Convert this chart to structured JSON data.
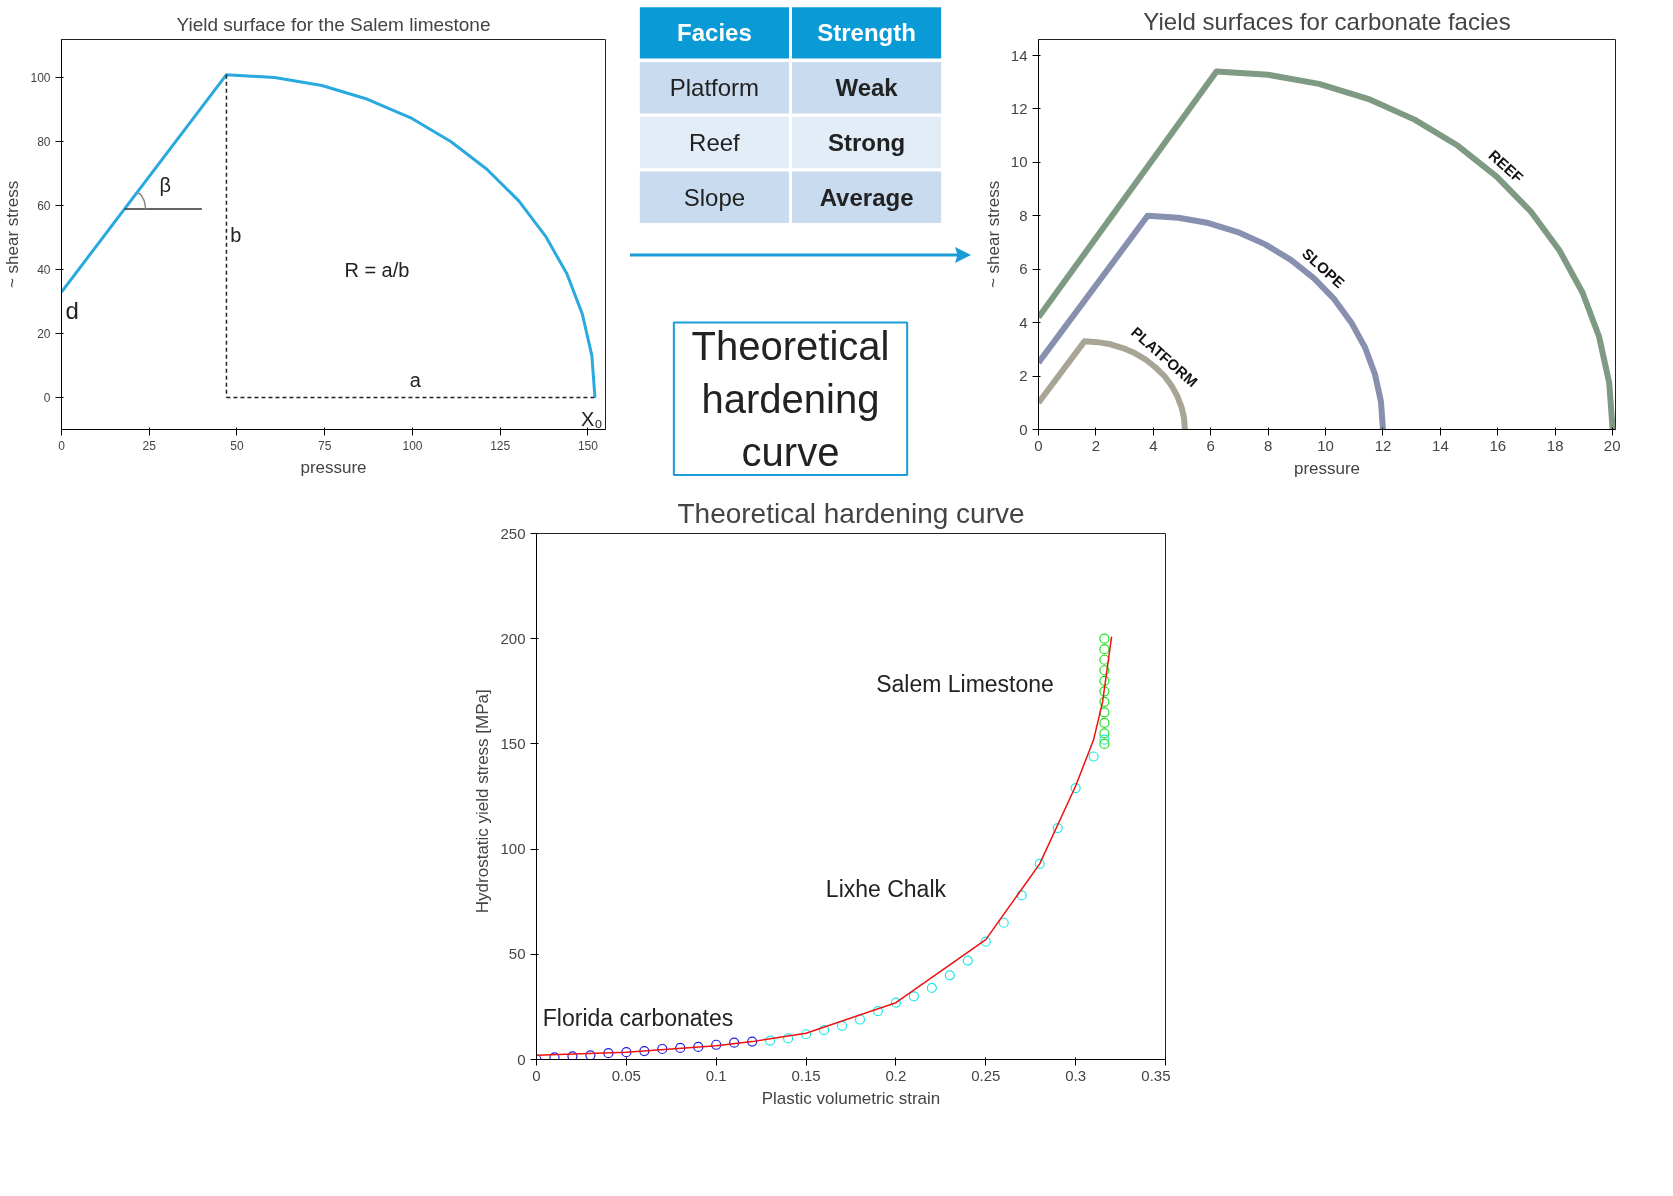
{
  "chart_data": [
    {
      "type": "line",
      "title": "Yield surface for the Salem limestone",
      "xlabel": "pressure",
      "ylabel": "~ shear stress",
      "xlim": [
        0,
        155
      ],
      "ylim": [
        -10,
        112
      ],
      "xticks": [
        0,
        25,
        50,
        75,
        100,
        125,
        150
      ],
      "yticks": [
        0,
        20,
        40,
        60,
        80,
        100
      ],
      "grid": false,
      "series": [
        {
          "color": "#29a9e0",
          "x": [
            0,
            47,
            60.7,
            74.2,
            87.2,
            99.5,
            110.9,
            121.2,
            130.3,
            137.9,
            144.0,
            148.4,
            151.1,
            152
          ],
          "values": [
            33,
            101,
            100.1,
            97.6,
            93.3,
            87.5,
            80.1,
            71.4,
            61.5,
            50.5,
            38.7,
            26.1,
            13.2,
            0
          ]
        },
        {
          "color": "#222222",
          "line_style": "dashed",
          "x": [
            47,
            47
          ],
          "values": [
            101,
            0
          ]
        },
        {
          "color": "#222222",
          "line_style": "dashed",
          "x": [
            47,
            152
          ],
          "values": [
            0,
            0
          ]
        },
        {
          "color": "#333333",
          "x": [
            18,
            40
          ],
          "values": [
            59,
            59
          ]
        },
        {
          "color": "#888888",
          "x": [
            24,
            23.6,
            22.6,
            21.5
          ],
          "values": [
            59,
            61.5,
            63.5,
            64.1
          ]
        }
      ],
      "annotations": [
        "β",
        "b",
        "R = a/b",
        "a",
        "X₀",
        "d"
      ]
    },
    {
      "type": "other",
      "annotations": [
        "Facies",
        "Strength",
        "Platform",
        "Weak",
        "Reef",
        "Strong",
        "Slope",
        "Average"
      ]
    },
    {
      "type": "other",
      "annotations": [
        "Theoretical hardening curve"
      ]
    },
    {
      "type": "line",
      "title": "Yield surfaces for carbonate facies",
      "xlabel": "pressure",
      "ylabel": "~ shear stress",
      "xlim": [
        0,
        20.1
      ],
      "ylim": [
        0,
        14.6
      ],
      "xticks": [
        0,
        2,
        4,
        6,
        8,
        10,
        12,
        14,
        16,
        18,
        20
      ],
      "yticks": [
        0,
        2,
        4,
        6,
        8,
        10,
        12,
        14
      ],
      "grid": false,
      "series": [
        {
          "name": "REEF",
          "color": "#7f9a82",
          "x": [
            0,
            6.2,
            8.0,
            9.77,
            11.48,
            13.1,
            14.6,
            15.96,
            17.15,
            18.15,
            18.95,
            19.53,
            19.88,
            20.0
          ],
          "values": [
            4.2,
            13.4,
            13.28,
            12.94,
            12.38,
            11.6,
            10.63,
            9.47,
            8.16,
            6.7,
            5.13,
            3.47,
            1.75,
            0
          ]
        },
        {
          "name": "SLOPE",
          "color": "#8890b0",
          "x": [
            0,
            3.8,
            4.87,
            5.92,
            6.94,
            7.9,
            8.79,
            9.6,
            10.31,
            10.9,
            11.38,
            11.72,
            11.93,
            12.0
          ],
          "values": [
            2.5,
            8,
            7.93,
            7.73,
            7.39,
            6.93,
            6.35,
            5.66,
            4.87,
            4,
            3.06,
            2.07,
            1.04,
            0
          ]
        },
        {
          "name": "PLATFORM",
          "color": "#a8a597",
          "x": [
            0,
            1.6,
            2.06,
            2.51,
            2.94,
            3.35,
            3.73,
            4.07,
            4.38,
            4.63,
            4.83,
            4.98,
            5.07,
            5.1
          ],
          "values": [
            1.0,
            3.3,
            3.27,
            3.19,
            3.05,
            2.86,
            2.62,
            2.33,
            2.01,
            1.65,
            1.26,
            0.85,
            0.43,
            0
          ]
        }
      ]
    },
    {
      "type": "scatter",
      "title": "Theoretical hardening curve",
      "xlabel": "Plastic volumetric strain",
      "ylabel": "Hydrostatic yield stress   [MPa]",
      "xlim": [
        0,
        0.35
      ],
      "ylim": [
        0,
        250
      ],
      "xticks": [
        0,
        0.05,
        0.1,
        0.15,
        0.2,
        0.25,
        0.3,
        0.35
      ],
      "yticks": [
        0,
        50,
        100,
        150,
        200,
        250
      ],
      "grid": false,
      "marker": "circle",
      "series": [
        {
          "color": "#2020e0",
          "x": [
            0,
            0.01,
            0.02,
            0.03,
            0.04,
            0.05,
            0.06,
            0.07,
            0.08,
            0.09,
            0.1,
            0.11,
            0.12
          ],
          "values": [
            0,
            1,
            1.5,
            2,
            3,
            3.5,
            4,
            5,
            5.5,
            6,
            7,
            8,
            8.5
          ]
        },
        {
          "color": "#20e8e8",
          "x": [
            0.13,
            0.14,
            0.15,
            0.16,
            0.17,
            0.18,
            0.19,
            0.2,
            0.21,
            0.22,
            0.23,
            0.24,
            0.25,
            0.26,
            0.27,
            0.28,
            0.29,
            0.3,
            0.31,
            0.316
          ],
          "values": [
            9,
            10,
            12,
            14,
            16,
            19,
            23,
            27,
            30,
            34,
            40,
            47,
            56,
            65,
            78,
            93,
            110,
            129,
            144,
            152
          ]
        },
        {
          "color": "#20e020",
          "x": [
            0.316,
            0.316,
            0.316,
            0.316,
            0.316,
            0.316,
            0.316,
            0.316,
            0.316,
            0.316,
            0.316
          ],
          "values": [
            150,
            155,
            160,
            165,
            170,
            175,
            180,
            185,
            190,
            195,
            200
          ]
        },
        {
          "type": "line",
          "marker": "none",
          "color": "#ee1111",
          "x": [
            0,
            0.05,
            0.1,
            0.12,
            0.15,
            0.2,
            0.25,
            0.28,
            0.3,
            0.31,
            0.315,
            0.32
          ],
          "values": [
            2,
            3.5,
            6.5,
            8.5,
            12.5,
            27,
            57,
            93,
            130,
            152,
            170,
            201
          ]
        }
      ],
      "annotations": [
        "Salem Limestone",
        "Lixhe Chalk",
        "Florida carbonates"
      ]
    }
  ]
}
